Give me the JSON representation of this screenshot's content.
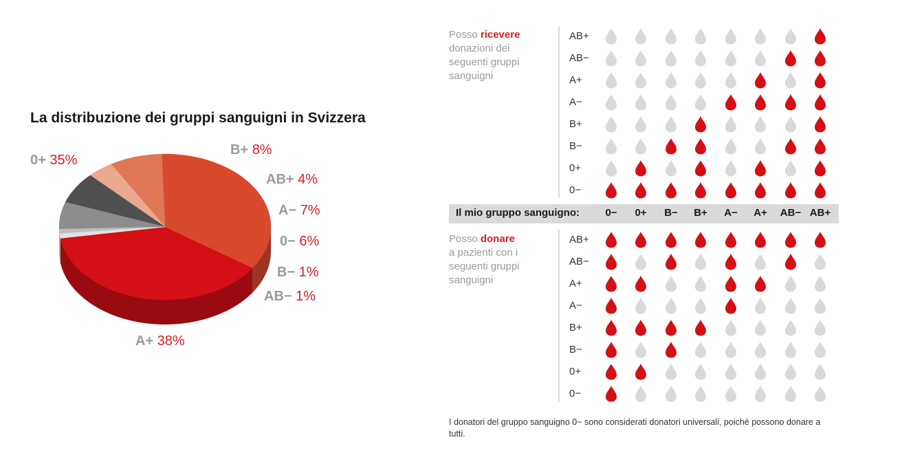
{
  "pie": {
    "title": "La distribuzione dei gruppi sanguigni in Svizzera"
  },
  "chart_data": {
    "type": "pie",
    "title": "La distribuzione dei gruppi sanguigni in Svizzera",
    "slices": [
      {
        "label": "A+",
        "value_text": "38%",
        "value": 38,
        "color": "#d40f15"
      },
      {
        "label": "0+",
        "value_text": "35%",
        "value": 35,
        "color": "#d8492e"
      },
      {
        "label": "B+",
        "value_text": "8%",
        "value": 8,
        "color": "#e07858"
      },
      {
        "label": "AB+",
        "value_text": "4%",
        "value": 4,
        "color": "#eba990"
      },
      {
        "label": "A−",
        "value_text": "7%",
        "value": 7,
        "color": "#505050"
      },
      {
        "label": "0−",
        "value_text": "6%",
        "value": 6,
        "color": "#8c8c8c"
      },
      {
        "label": "B−",
        "value_text": "1%",
        "value": 1,
        "color": "#bdbdbd"
      },
      {
        "label": "AB−",
        "value_text": "1%",
        "value": 1,
        "color": "#e2e2e2"
      }
    ]
  },
  "compatibility": {
    "receive": {
      "text_before": "Posso ",
      "emphasis": "ricevere",
      "lines": [
        "donazioni dei",
        "seguenti gruppi",
        "sanguigni"
      ]
    },
    "donate": {
      "text_before": "Posso ",
      "emphasis": "donare",
      "lines": [
        "a pazienti con i",
        "seguenti gruppi",
        "sanguigni"
      ]
    },
    "row_labels": [
      "AB+",
      "AB−",
      "A+",
      "A−",
      "B+",
      "B−",
      "0+",
      "0−"
    ],
    "my_group_label": "Il mio gruppo sanguigno:",
    "column_labels": [
      "0−",
      "0+",
      "B−",
      "B+",
      "A−",
      "A+",
      "AB−",
      "AB+"
    ],
    "receive_matrix": [
      [
        0,
        0,
        0,
        0,
        0,
        0,
        0,
        1
      ],
      [
        0,
        0,
        0,
        0,
        0,
        0,
        1,
        1
      ],
      [
        0,
        0,
        0,
        0,
        0,
        1,
        0,
        1
      ],
      [
        0,
        0,
        0,
        0,
        1,
        1,
        1,
        1
      ],
      [
        0,
        0,
        0,
        1,
        0,
        0,
        0,
        1
      ],
      [
        0,
        0,
        1,
        1,
        0,
        0,
        1,
        1
      ],
      [
        0,
        1,
        0,
        1,
        0,
        1,
        0,
        1
      ],
      [
        1,
        1,
        1,
        1,
        1,
        1,
        1,
        1
      ]
    ],
    "donate_matrix": [
      [
        1,
        1,
        1,
        1,
        1,
        1,
        1,
        1
      ],
      [
        1,
        0,
        1,
        0,
        1,
        0,
        1,
        0
      ],
      [
        1,
        1,
        0,
        0,
        1,
        1,
        0,
        0
      ],
      [
        1,
        0,
        0,
        0,
        1,
        0,
        0,
        0
      ],
      [
        1,
        1,
        1,
        1,
        0,
        0,
        0,
        0
      ],
      [
        1,
        0,
        1,
        0,
        0,
        0,
        0,
        0
      ],
      [
        1,
        1,
        0,
        0,
        0,
        0,
        0,
        0
      ],
      [
        1,
        0,
        0,
        0,
        0,
        0,
        0,
        0
      ]
    ],
    "colors": {
      "compatible": "#d40f15",
      "incompatible": "#d9d9d9"
    }
  },
  "footnote": "I donatori del gruppo sanguigno 0− sono considerati donatori universali, poiché possono donare a tutti."
}
